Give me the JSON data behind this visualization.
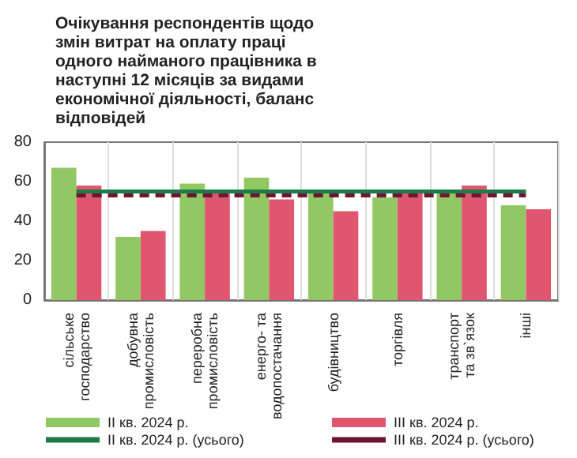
{
  "chart_data": {
    "type": "bar",
    "title": "Очікування респондентів щодо змін витрат на оплату праці одного найманого працівника в наступні 12 місяців за видами економічної діяльності, баланс відповідей",
    "categories": [
      "сільське\nгосподарство",
      "добувна\nпромисловість",
      "переробна\nпромисловість",
      "енерго- та\nводопостачання",
      "будівництво",
      "торгівля",
      "транспорт\nта зв`язок",
      "інші"
    ],
    "series": [
      {
        "name": "II кв. 2024 р.",
        "color": "#92c864",
        "values": [
          67,
          32,
          59,
          62,
          54,
          52,
          56,
          48
        ]
      },
      {
        "name": "III кв. 2024 р.",
        "color": "#e0566e",
        "values": [
          58,
          35,
          55,
          51,
          45,
          54,
          58,
          46
        ]
      },
      {
        "name": "II кв. 2024 р. (усього)",
        "type": "line",
        "color": "#1e7a4a",
        "line_style": "solid",
        "values": [
          55,
          55,
          55,
          55,
          55,
          55,
          55,
          55
        ]
      },
      {
        "name": "III кв. 2024 р. (усього)",
        "type": "line",
        "color": "#6e1434",
        "line_style": "dashed",
        "values": [
          53,
          53,
          53,
          53,
          53,
          53,
          53,
          53
        ]
      }
    ],
    "ylim": [
      0,
      80
    ],
    "yticks": [
      0,
      20,
      40,
      60,
      80
    ],
    "grid": "x",
    "legend": "bottom",
    "marker": "none"
  }
}
